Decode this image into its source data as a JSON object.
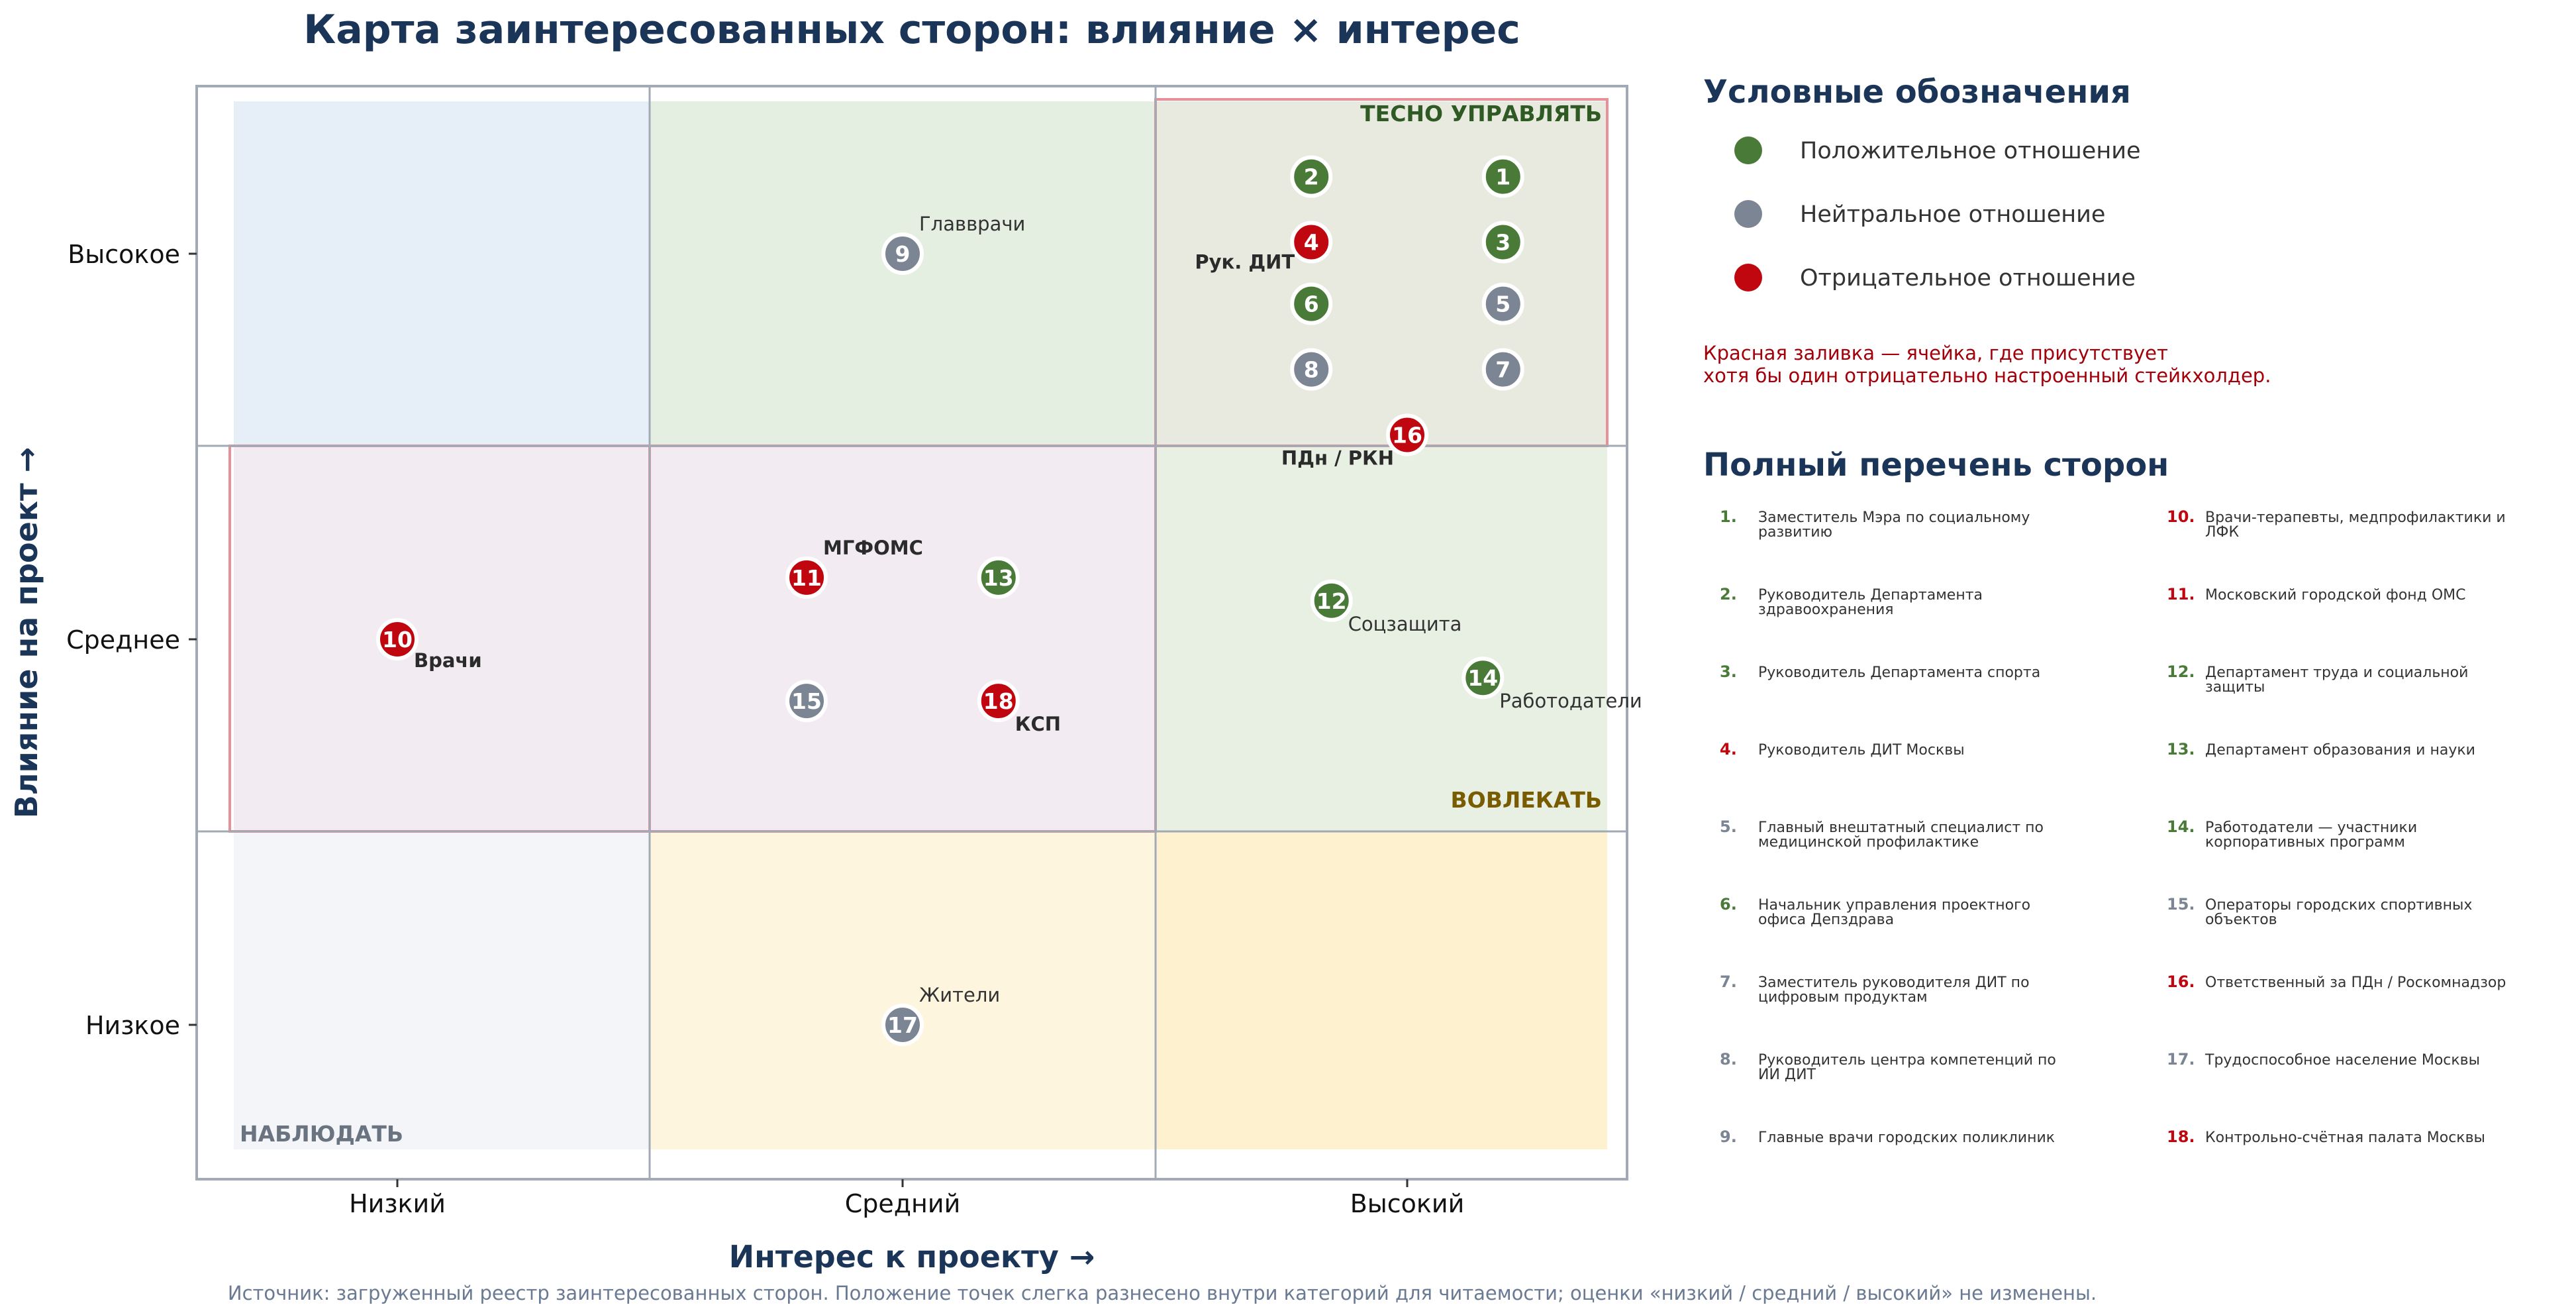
{
  "chart_data": {
    "type": "scatter",
    "title": "Карта заинтересованных сторон: влияние × интерес",
    "xlabel": "Интерес к проекту →",
    "ylabel": "Влияние на проект →",
    "x_categories": [
      "Низкий",
      "Средний",
      "Высокий"
    ],
    "y_categories": [
      "Низкое",
      "Среднее",
      "Высокое"
    ],
    "xlim": [
      0.5,
      3.5
    ],
    "ylim": [
      0.5,
      3.5
    ],
    "grid": true,
    "quadrant_labels": {
      "manage_closely": "ТЕСНО УПРАВЛЯТЬ",
      "involve": "ВОВЛЕКАТЬ",
      "monitor": "НАБЛЮДАТЬ"
    },
    "sentiment_colors": {
      "positive": "#4a7a38",
      "neutral": "#7c8593",
      "negative": "#c0060e"
    },
    "points": [
      {
        "id": "1",
        "x": 3.19,
        "y": 3.2,
        "sentiment": "positive",
        "label": ""
      },
      {
        "id": "2",
        "x": 2.81,
        "y": 3.2,
        "sentiment": "positive",
        "label": ""
      },
      {
        "id": "3",
        "x": 3.19,
        "y": 3.03,
        "sentiment": "positive",
        "label": ""
      },
      {
        "id": "4",
        "x": 2.81,
        "y": 3.03,
        "sentiment": "negative",
        "label": "Рук. ДИТ"
      },
      {
        "id": "5",
        "x": 3.19,
        "y": 2.87,
        "sentiment": "neutral",
        "label": ""
      },
      {
        "id": "6",
        "x": 2.81,
        "y": 2.87,
        "sentiment": "positive",
        "label": ""
      },
      {
        "id": "7",
        "x": 3.19,
        "y": 2.7,
        "sentiment": "neutral",
        "label": ""
      },
      {
        "id": "8",
        "x": 2.81,
        "y": 2.7,
        "sentiment": "neutral",
        "label": ""
      },
      {
        "id": "9",
        "x": 2.0,
        "y": 3.0,
        "sentiment": "neutral",
        "label": "Главврачи"
      },
      {
        "id": "10",
        "x": 1.0,
        "y": 2.0,
        "sentiment": "negative",
        "label": "Врачи"
      },
      {
        "id": "11",
        "x": 1.81,
        "y": 2.16,
        "sentiment": "negative",
        "label": "МГФОМС"
      },
      {
        "id": "12",
        "x": 2.85,
        "y": 2.1,
        "sentiment": "positive",
        "label": "Соцзащита"
      },
      {
        "id": "13",
        "x": 2.19,
        "y": 2.16,
        "sentiment": "positive",
        "label": ""
      },
      {
        "id": "14",
        "x": 3.15,
        "y": 1.9,
        "sentiment": "positive",
        "label": "Работодатели"
      },
      {
        "id": "15",
        "x": 1.81,
        "y": 1.84,
        "sentiment": "neutral",
        "label": ""
      },
      {
        "id": "16",
        "x": 3.0,
        "y": 2.53,
        "sentiment": "negative",
        "label": "ПДн / РКН"
      },
      {
        "id": "17",
        "x": 2.0,
        "y": 1.0,
        "sentiment": "neutral",
        "label": "Жители"
      },
      {
        "id": "18",
        "x": 2.19,
        "y": 1.84,
        "sentiment": "negative",
        "label": "КСП"
      }
    ]
  },
  "legend": {
    "title": "Условные обозначения",
    "items": [
      {
        "label": "Положительное отношение",
        "sentiment": "positive"
      },
      {
        "label": "Нейтральное отношение",
        "sentiment": "neutral"
      },
      {
        "label": "Отрицательное отношение",
        "sentiment": "negative"
      }
    ],
    "note_line1": "Красная заливка — ячейка, где присутствует",
    "note_line2": "хотя бы один отрицательно настроенный стейкхолдер."
  },
  "stakeholder_list": {
    "title": "Полный перечень сторон",
    "items": [
      {
        "num": "1.",
        "sentiment": "positive",
        "line1": "Заместитель Мэра по социальному",
        "line2": "развитию"
      },
      {
        "num": "2.",
        "sentiment": "positive",
        "line1": "Руководитель Департамента",
        "line2": "здравоохранения"
      },
      {
        "num": "3.",
        "sentiment": "positive",
        "line1": "Руководитель Департамента спорта",
        "line2": ""
      },
      {
        "num": "4.",
        "sentiment": "negative",
        "line1": "Руководитель ДИТ Москвы",
        "line2": ""
      },
      {
        "num": "5.",
        "sentiment": "neutral",
        "line1": "Главный внештатный специалист по",
        "line2": "медицинской профилактике"
      },
      {
        "num": "6.",
        "sentiment": "positive",
        "line1": "Начальник управления проектного",
        "line2": "офиса Депздрава"
      },
      {
        "num": "7.",
        "sentiment": "neutral",
        "line1": "Заместитель руководителя ДИТ по",
        "line2": "цифровым продуктам"
      },
      {
        "num": "8.",
        "sentiment": "neutral",
        "line1": "Руководитель центра компетенций по",
        "line2": "ИИ ДИТ"
      },
      {
        "num": "9.",
        "sentiment": "neutral",
        "line1": "Главные врачи городских поликлиник",
        "line2": ""
      },
      {
        "num": "10.",
        "sentiment": "negative",
        "line1": "Врачи-терапевты, медпрофилактики и",
        "line2": "ЛФК"
      },
      {
        "num": "11.",
        "sentiment": "negative",
        "line1": "Московский городской фонд ОМС",
        "line2": ""
      },
      {
        "num": "12.",
        "sentiment": "positive",
        "line1": "Департамент труда и социальной",
        "line2": "защиты"
      },
      {
        "num": "13.",
        "sentiment": "positive",
        "line1": "Департамент образования и науки",
        "line2": ""
      },
      {
        "num": "14.",
        "sentiment": "positive",
        "line1": "Работодатели — участники",
        "line2": "корпоративных программ"
      },
      {
        "num": "15.",
        "sentiment": "neutral",
        "line1": "Операторы городских спортивных",
        "line2": "объектов"
      },
      {
        "num": "16.",
        "sentiment": "negative",
        "line1": "Ответственный за ПДн / Роскомнадзор",
        "line2": ""
      },
      {
        "num": "17.",
        "sentiment": "neutral",
        "line1": "Трудоспособное население Москвы",
        "line2": ""
      },
      {
        "num": "18.",
        "sentiment": "negative",
        "line1": "Контрольно-счётная палата Москвы",
        "line2": ""
      }
    ]
  },
  "source_note": "Источник: загруженный реестр заинтересованных сторон. Положение точек слегка разнесено внутри категорий для читаемости; оценки «низкий / средний / высокий» не изменены."
}
